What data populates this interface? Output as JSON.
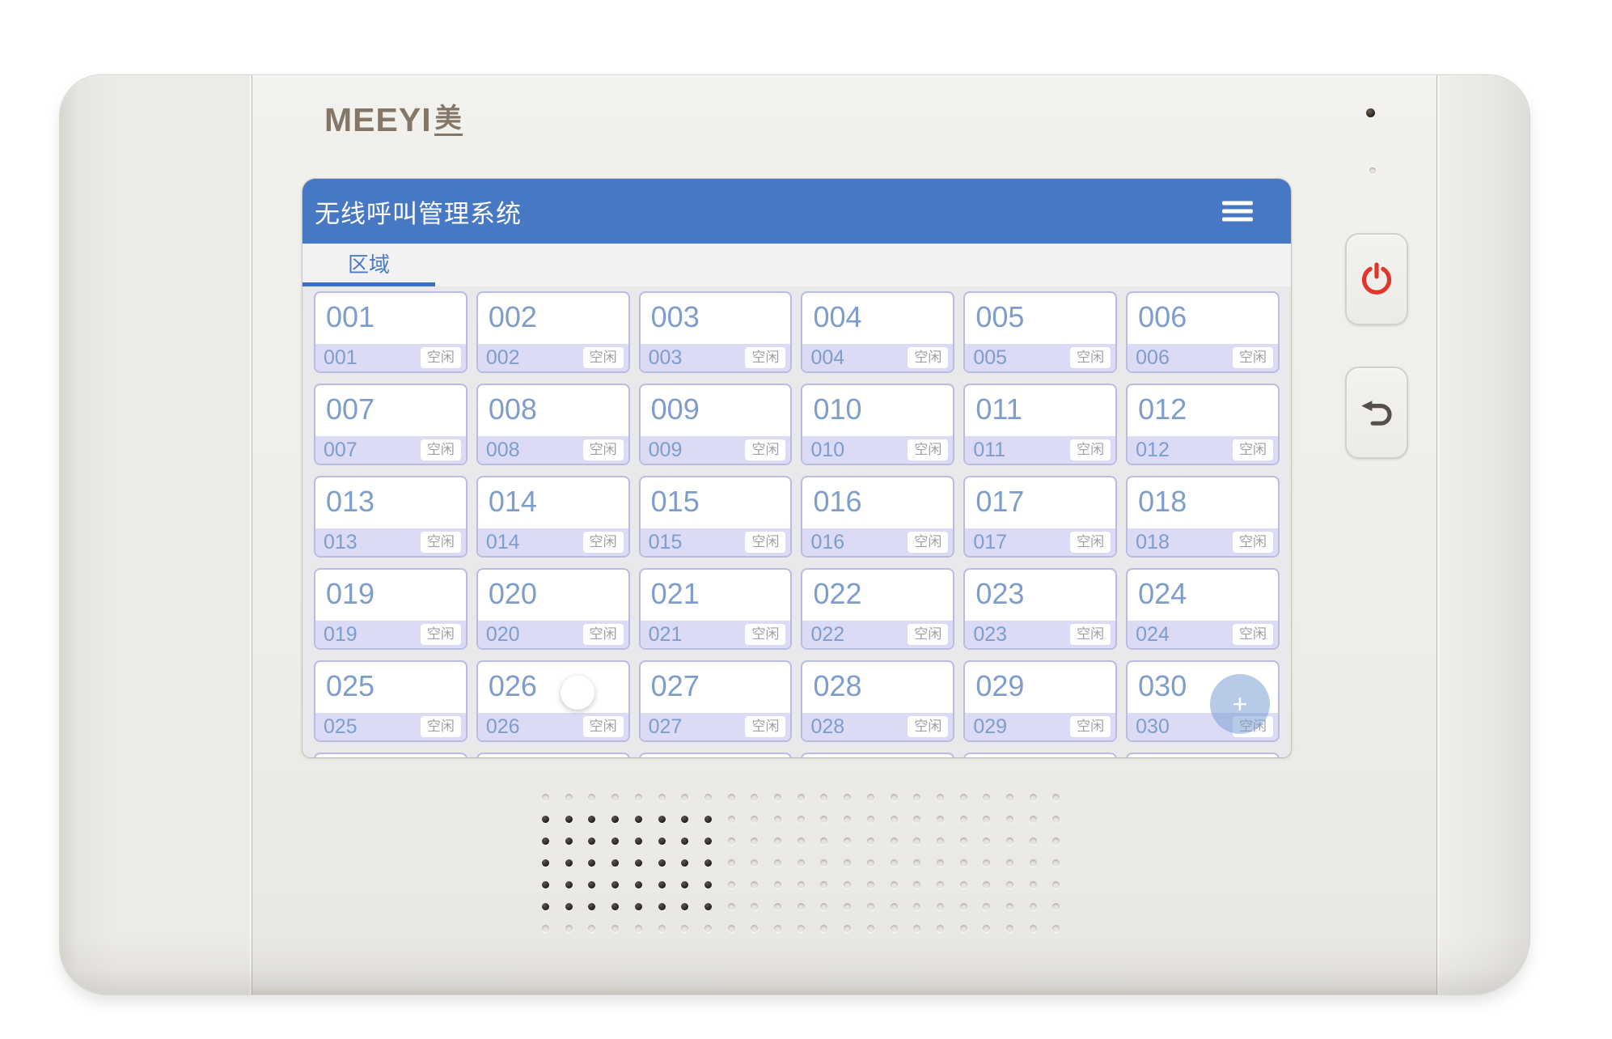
{
  "device": {
    "brand": "MEEYI",
    "brand_suffix": "美",
    "hardware_buttons": [
      {
        "name": "power",
        "icon": "power-icon",
        "color": "#e3342c"
      },
      {
        "name": "back",
        "icon": "return-arrow-icon",
        "color": "#57504a"
      }
    ],
    "speaker": {
      "rows": 7,
      "cols": 23,
      "open_cols": 8,
      "open_row_start": 1,
      "open_row_end": 5
    }
  },
  "app": {
    "header": {
      "title": "无线呼叫管理系统",
      "menu_icon": "hamburger-menu-icon"
    },
    "tabs": [
      {
        "label": "区域",
        "active": true
      }
    ],
    "cards": [
      {
        "number": "001",
        "status": "空闲"
      },
      {
        "number": "002",
        "status": "空闲"
      },
      {
        "number": "003",
        "status": "空闲"
      },
      {
        "number": "004",
        "status": "空闲"
      },
      {
        "number": "005",
        "status": "空闲"
      },
      {
        "number": "006",
        "status": "空闲"
      },
      {
        "number": "007",
        "status": "空闲"
      },
      {
        "number": "008",
        "status": "空闲"
      },
      {
        "number": "009",
        "status": "空闲"
      },
      {
        "number": "010",
        "status": "空闲"
      },
      {
        "number": "011",
        "status": "空闲"
      },
      {
        "number": "012",
        "status": "空闲"
      },
      {
        "number": "013",
        "status": "空闲"
      },
      {
        "number": "014",
        "status": "空闲"
      },
      {
        "number": "015",
        "status": "空闲"
      },
      {
        "number": "016",
        "status": "空闲"
      },
      {
        "number": "017",
        "status": "空闲"
      },
      {
        "number": "018",
        "status": "空闲"
      },
      {
        "number": "019",
        "status": "空闲"
      },
      {
        "number": "020",
        "status": "空闲"
      },
      {
        "number": "021",
        "status": "空闲"
      },
      {
        "number": "022",
        "status": "空闲"
      },
      {
        "number": "023",
        "status": "空闲"
      },
      {
        "number": "024",
        "status": "空闲"
      },
      {
        "number": "025",
        "status": "空闲"
      },
      {
        "number": "026",
        "status": "空闲"
      },
      {
        "number": "027",
        "status": "空闲"
      },
      {
        "number": "028",
        "status": "空闲"
      },
      {
        "number": "029",
        "status": "空闲"
      },
      {
        "number": "030",
        "status": "空闲"
      }
    ],
    "partial_next_row_count": 6,
    "touch_indicators": [
      {
        "type": "pointer-circle",
        "over_card": "026",
        "symbol": ""
      },
      {
        "type": "add-circle",
        "over_card": "030",
        "symbol": "+"
      }
    ]
  },
  "colors": {
    "header_blue": "#4678c3",
    "tab_underline_blue": "#3d6fc0",
    "card_number_blue": "#7e9dcb",
    "card_strip_lavender": "#dcdbf5",
    "card_border": "#b9bce0",
    "status_text_gray": "#9fa0a6",
    "power_red": "#e3342c"
  }
}
